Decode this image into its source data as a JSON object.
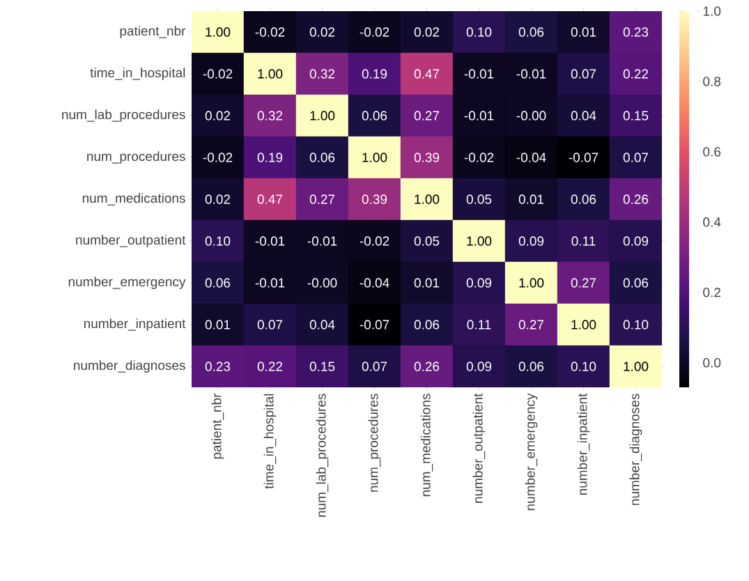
{
  "chart_data": {
    "type": "heatmap",
    "categories": [
      "patient_nbr",
      "time_in_hospital",
      "num_lab_procedures",
      "num_procedures",
      "num_medications",
      "number_outpatient",
      "number_emergency",
      "number_inpatient",
      "number_diagnoses"
    ],
    "y_categories": [
      "patient_nbr",
      "time_in_hospital",
      "num_lab_procedures",
      "num_procedures",
      "num_medications",
      "number_outpatient",
      "number_emergency",
      "number_inpatient",
      "number_diagnoses"
    ],
    "cells": [
      [
        1.0,
        -0.02,
        0.02,
        -0.02,
        0.02,
        0.1,
        0.06,
        0.01,
        0.23
      ],
      [
        -0.02,
        1.0,
        0.32,
        0.19,
        0.47,
        -0.01,
        -0.01,
        0.07,
        0.22
      ],
      [
        0.02,
        0.32,
        1.0,
        0.06,
        0.27,
        -0.01,
        0.0,
        0.04,
        0.15
      ],
      [
        -0.02,
        0.19,
        0.06,
        1.0,
        0.39,
        -0.02,
        -0.04,
        -0.07,
        0.07
      ],
      [
        0.02,
        0.47,
        0.27,
        0.39,
        1.0,
        0.05,
        0.01,
        0.06,
        0.26
      ],
      [
        0.1,
        -0.01,
        -0.01,
        -0.02,
        0.05,
        1.0,
        0.09,
        0.11,
        0.09
      ],
      [
        0.06,
        -0.01,
        0.0,
        -0.04,
        0.01,
        0.09,
        1.0,
        0.27,
        0.06
      ],
      [
        0.01,
        0.07,
        0.04,
        -0.07,
        0.06,
        0.11,
        0.27,
        1.0,
        0.1
      ],
      [
        0.23,
        0.22,
        0.15,
        0.07,
        0.26,
        0.09,
        0.06,
        0.1,
        1.0
      ]
    ],
    "cell_labels": [
      [
        "1.00",
        "-0.02",
        "0.02",
        "-0.02",
        "0.02",
        "0.10",
        "0.06",
        "0.01",
        "0.23"
      ],
      [
        "-0.02",
        "1.00",
        "0.32",
        "0.19",
        "0.47",
        "-0.01",
        "-0.01",
        "0.07",
        "0.22"
      ],
      [
        "0.02",
        "0.32",
        "1.00",
        "0.06",
        "0.27",
        "-0.01",
        "-0.00",
        "0.04",
        "0.15"
      ],
      [
        "-0.02",
        "0.19",
        "0.06",
        "1.00",
        "0.39",
        "-0.02",
        "-0.04",
        "-0.07",
        "0.07"
      ],
      [
        "0.02",
        "0.47",
        "0.27",
        "0.39",
        "1.00",
        "0.05",
        "0.01",
        "0.06",
        "0.26"
      ],
      [
        "0.10",
        "-0.01",
        "-0.01",
        "-0.02",
        "0.05",
        "1.00",
        "0.09",
        "0.11",
        "0.09"
      ],
      [
        "0.06",
        "-0.01",
        "-0.00",
        "-0.04",
        "0.01",
        "0.09",
        "1.00",
        "0.27",
        "0.06"
      ],
      [
        "0.01",
        "0.07",
        "0.04",
        "-0.07",
        "0.06",
        "0.11",
        "0.27",
        "1.00",
        "0.10"
      ],
      [
        "0.23",
        "0.22",
        "0.15",
        "0.07",
        "0.26",
        "0.09",
        "0.06",
        "0.10",
        "1.00"
      ]
    ],
    "clim": [
      -0.07,
      1.0
    ],
    "cticks": [
      {
        "value": 0,
        "label": "0.0"
      },
      {
        "value": 0.2,
        "label": "0.2"
      },
      {
        "value": 0.4,
        "label": "0.4"
      },
      {
        "value": 0.6,
        "label": "0.6"
      },
      {
        "value": 0.8,
        "label": "0.8"
      },
      {
        "value": 1.0,
        "label": "1.0"
      }
    ]
  }
}
